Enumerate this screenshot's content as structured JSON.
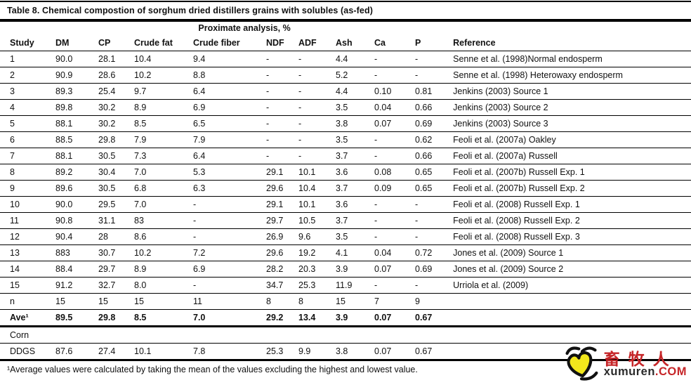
{
  "page": {
    "title": "Table 8. Chemical compostion of sorghum dried distillers grains with solubles (as-fed)",
    "footnote": "¹Average values were calculated by taking the mean of the values excluding the highest and lowest value."
  },
  "table": {
    "group_header": "Proximate analysis, %",
    "columns": [
      "Study",
      "DM",
      "CP",
      "Crude fat",
      "Crude fiber",
      "NDF",
      "ADF",
      "Ash",
      "Ca",
      "P",
      "Reference"
    ],
    "rows": [
      {
        "cells": [
          "1",
          "90.0",
          "28.1",
          "10.4",
          "9.4",
          "-",
          "-",
          "4.4",
          "-",
          "-",
          "Senne et al. (1998)Normal endosperm"
        ]
      },
      {
        "cells": [
          "2",
          "90.9",
          "28.6",
          "10.2",
          "8.8",
          "-",
          "-",
          "5.2",
          "-",
          "-",
          "Senne et al. (1998) Heterowaxy endosperm"
        ]
      },
      {
        "cells": [
          "3",
          "89.3",
          "25.4",
          "9.7",
          "6.4",
          "-",
          "-",
          "4.4",
          "0.10",
          "0.81",
          "Jenkins (2003) Source 1"
        ]
      },
      {
        "cells": [
          "4",
          "89.8",
          "30.2",
          "8.9",
          "6.9",
          "-",
          "-",
          "3.5",
          "0.04",
          "0.66",
          "Jenkins (2003) Source 2"
        ]
      },
      {
        "cells": [
          "5",
          "88.1",
          "30.2",
          "8.5",
          "6.5",
          "-",
          "-",
          "3.8",
          "0.07",
          "0.69",
          "Jenkins (2003) Source 3"
        ]
      },
      {
        "cells": [
          "6",
          "88.5",
          "29.8",
          "7.9",
          "7.9",
          "-",
          "-",
          "3.5",
          "-",
          "0.62",
          "Feoli et al. (2007a) Oakley"
        ]
      },
      {
        "cells": [
          "7",
          "88.1",
          "30.5",
          "7.3",
          "6.4",
          "-",
          "-",
          "3.7",
          "-",
          "0.66",
          "Feoli et al. (2007a) Russell"
        ]
      },
      {
        "cells": [
          "8",
          "89.2",
          "30.4",
          "7.0",
          "5.3",
          "29.1",
          "10.1",
          "3.6",
          "0.08",
          "0.65",
          "Feoli et al. (2007b) Russell Exp. 1"
        ]
      },
      {
        "cells": [
          "9",
          "89.6",
          "30.5",
          "6.8",
          "6.3",
          "29.6",
          "10.4",
          "3.7",
          "0.09",
          "0.65",
          "Feoli et al. (2007b) Russell Exp. 2"
        ]
      },
      {
        "cells": [
          "10",
          "90.0",
          "29.5",
          "7.0",
          "-",
          "29.1",
          "10.1",
          "3.6",
          "-",
          "-",
          "Feoli et al. (2008) Russell Exp. 1"
        ]
      },
      {
        "cells": [
          "11",
          "90.8",
          "31.1",
          "83",
          "-",
          "29.7",
          "10.5",
          "3.7",
          "-",
          "-",
          "Feoli et al. (2008) Russell Exp. 2"
        ]
      },
      {
        "cells": [
          "12",
          "90.4",
          "28",
          "8.6",
          "-",
          "26.9",
          "9.6",
          "3.5",
          "-",
          "-",
          "Feoli et al. (2008) Russell Exp. 3"
        ]
      },
      {
        "cells": [
          "13",
          "883",
          "30.7",
          "10.2",
          "7.2",
          "29.6",
          "19.2",
          "4.1",
          "0.04",
          "0.72",
          "Jones et al. (2009) Source 1"
        ]
      },
      {
        "cells": [
          "14",
          "88.4",
          "29.7",
          "8.9",
          "6.9",
          "28.2",
          "20.3",
          "3.9",
          "0.07",
          "0.69",
          "Jones et al. (2009) Source 2"
        ]
      },
      {
        "cells": [
          "15",
          "91.2",
          "32.7",
          "8.0",
          "-",
          "34.7",
          "25.3",
          "11.9",
          "-",
          "-",
          "Urriola et al. (2009)"
        ]
      },
      {
        "cells": [
          "n",
          "15",
          "15",
          "15",
          "11",
          "8",
          "8",
          "15",
          "7",
          "9",
          ""
        ]
      },
      {
        "cells": [
          "Ave¹",
          "89.5",
          "29.8",
          "8.5",
          "7.0",
          "29.2",
          "13.4",
          "3.9",
          "0.07",
          "0.67",
          ""
        ],
        "bold": true,
        "thick": true
      },
      {
        "cells": [
          "Corn",
          "",
          "",
          "",
          "",
          "",
          "",
          "",
          "",
          "",
          ""
        ]
      },
      {
        "cells": [
          "DDGS",
          "87.6",
          "27.4",
          "10.1",
          "7.8",
          "25.3",
          "9.9",
          "3.8",
          "0.07",
          "0.67",
          ""
        ],
        "thick": true
      }
    ]
  },
  "watermark": {
    "cn_text": "畜牧人",
    "latin_text": "xumuren",
    "tld_text": ".COM",
    "red_color": "#c62528",
    "yellow_color": "#f2e71c"
  }
}
